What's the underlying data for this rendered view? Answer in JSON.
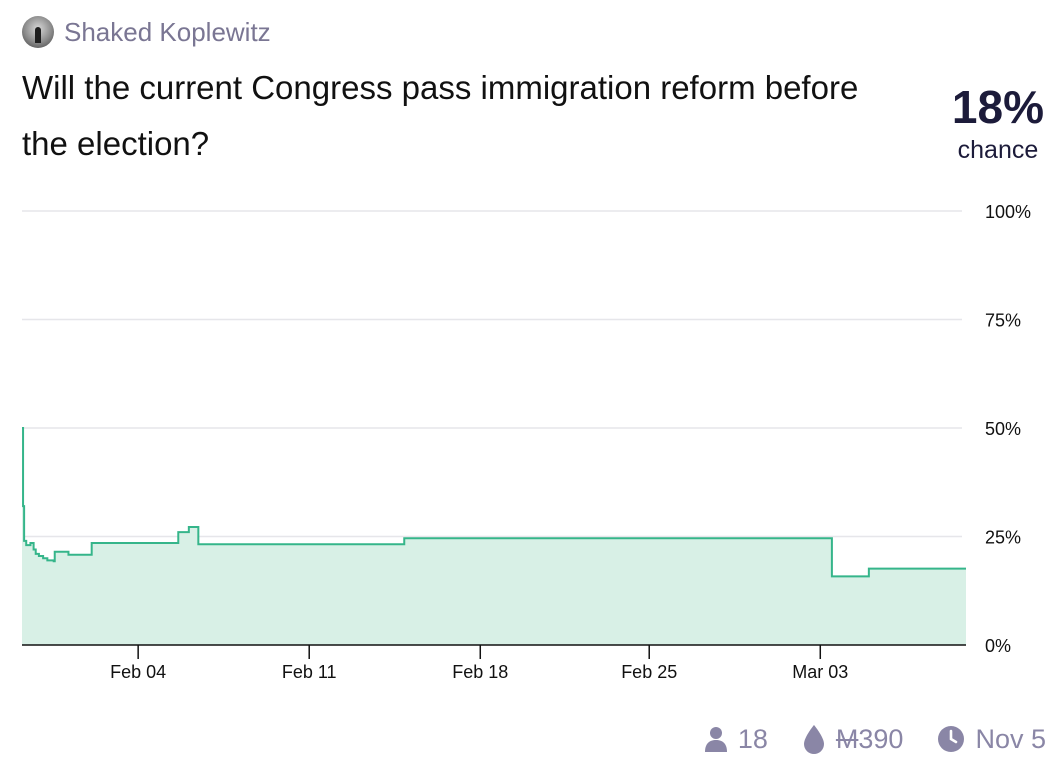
{
  "author": {
    "name": "Shaked Koplewitz"
  },
  "question": "Will the current Congress pass immigration reform before the election?",
  "probability": {
    "value": "18%",
    "label": "chance"
  },
  "footer": {
    "traders": "18",
    "volume_symbol": "M",
    "volume_amount": "390",
    "close_date": "Nov 5"
  },
  "colors": {
    "line": "#35b58a",
    "fill": "#d8f0e6",
    "grid": "#e6e6ea",
    "text": "#1c1b3a",
    "muted": "#8a86a6"
  },
  "chart_data": {
    "type": "area",
    "title": "",
    "xlabel": "",
    "ylabel": "",
    "x_unit": "days since Jan 28",
    "xlim": [
      0,
      44.7
    ],
    "ylim": [
      0,
      100
    ],
    "y_ticks": [
      {
        "value": 0,
        "label": "0%"
      },
      {
        "value": 25,
        "label": "25%"
      },
      {
        "value": 50,
        "label": "50%"
      },
      {
        "value": 75,
        "label": "75%"
      },
      {
        "value": 100,
        "label": "100%"
      }
    ],
    "x_ticks": [
      {
        "value": 5.5,
        "label": "Feb 04"
      },
      {
        "value": 13.6,
        "label": "Feb 11"
      },
      {
        "value": 21.7,
        "label": "Feb 18"
      },
      {
        "value": 29.7,
        "label": "Feb 25"
      },
      {
        "value": 37.8,
        "label": "Mar 03"
      }
    ],
    "series": [
      {
        "name": "probability",
        "step": true,
        "points": [
          [
            0,
            50
          ],
          [
            0.05,
            32
          ],
          [
            0.1,
            24
          ],
          [
            0.2,
            23
          ],
          [
            0.4,
            23.5
          ],
          [
            0.55,
            22
          ],
          [
            0.65,
            21
          ],
          [
            0.8,
            20.5
          ],
          [
            1.0,
            20
          ],
          [
            1.2,
            19.5
          ],
          [
            1.5,
            19.3
          ],
          [
            1.55,
            21.5
          ],
          [
            2.2,
            20.8
          ],
          [
            3.3,
            23.5
          ],
          [
            7.4,
            26
          ],
          [
            7.9,
            27.2
          ],
          [
            8.35,
            23.2
          ],
          [
            18.1,
            24.6
          ],
          [
            38.35,
            15.8
          ],
          [
            40.1,
            17.6
          ],
          [
            44.7,
            17.6
          ]
        ]
      }
    ]
  }
}
